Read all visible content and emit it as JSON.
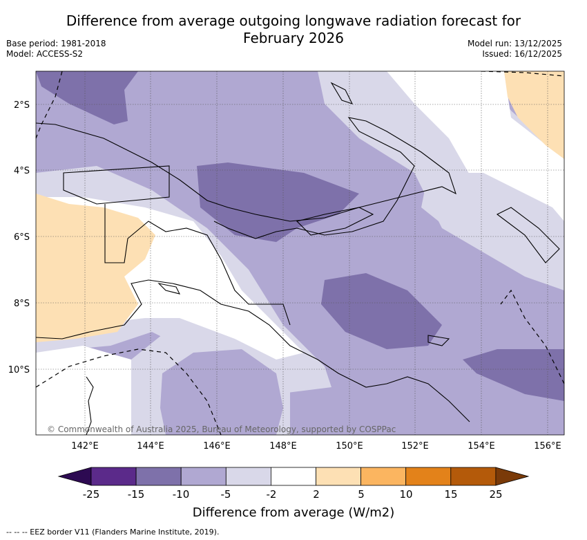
{
  "title": {
    "line1": "Difference from average outgoing longwave radiation forecast for",
    "line2": "February 2026"
  },
  "meta": {
    "base_period": "Base period: 1981-2018",
    "model": "Model: ACCESS-S2",
    "model_run": "Model run: 13/12/2025",
    "issued": "Issued: 16/12/2025"
  },
  "map": {
    "lat_labels": [
      "2°S",
      "4°S",
      "6°S",
      "8°S",
      "10°S"
    ],
    "lon_labels": [
      "142°E",
      "144°E",
      "146°E",
      "148°E",
      "150°E",
      "152°E",
      "154°E",
      "156°E"
    ],
    "copyright": "© Commonwealth of Australia 2025, Bureau of Meteorology, supported by COSPPac"
  },
  "colorbar": {
    "labels": [
      "-25",
      "-15",
      "-10",
      "-5",
      "-2",
      "2",
      "5",
      "10",
      "15",
      "25"
    ],
    "colors": [
      "#2d0a52",
      "#5b2a8a",
      "#7e71aa",
      "#b0a8d2",
      "#d9d8e9",
      "#ffffff",
      "#fde0b4",
      "#fbb560",
      "#e3821a",
      "#b45a0a",
      "#7a3a09"
    ],
    "title": "Difference from average (W/m2)"
  },
  "footnote": "--  --  -- EEZ border V11 (Flanders Marine Institute, 2019)."
}
